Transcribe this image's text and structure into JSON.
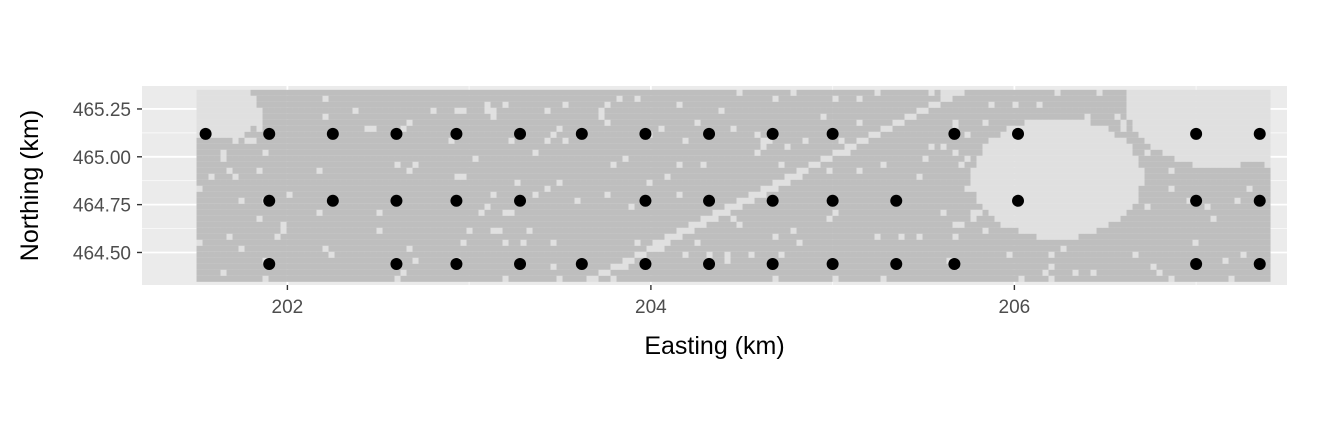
{
  "chart_data": {
    "type": "scatter",
    "xlabel": "Easting (km)",
    "ylabel": "Northing (km)",
    "xlim": [
      201.2,
      207.5
    ],
    "ylim": [
      464.33,
      465.37
    ],
    "x_ticks": [
      202,
      204,
      206
    ],
    "x_tick_labels": [
      "202",
      "204",
      "206"
    ],
    "y_ticks": [
      464.5,
      464.75,
      465.0,
      465.25
    ],
    "y_tick_labels": [
      "464.50",
      "464.75",
      "465.00",
      "465.25"
    ],
    "grid": true,
    "colors": {
      "panel_background": "#ebebeb",
      "grid_major": "#ffffff",
      "raster_fill": "#bebebe",
      "raster_gap": "#e0e0e0",
      "points": "#000000"
    },
    "raster_extent": {
      "xmin": 201.5,
      "xmax": 207.4,
      "ymin": 464.36,
      "ymax": 465.35
    },
    "series": [
      {
        "points": [
          {
            "x": 201.55,
            "y": 465.12
          },
          {
            "x": 201.9,
            "y": 465.12
          },
          {
            "x": 202.25,
            "y": 465.12
          },
          {
            "x": 202.6,
            "y": 465.12
          },
          {
            "x": 202.93,
            "y": 465.12
          },
          {
            "x": 203.28,
            "y": 465.12
          },
          {
            "x": 203.62,
            "y": 465.12
          },
          {
            "x": 203.97,
            "y": 465.12
          },
          {
            "x": 204.32,
            "y": 465.12
          },
          {
            "x": 204.67,
            "y": 465.12
          },
          {
            "x": 205.0,
            "y": 465.12
          },
          {
            "x": 205.67,
            "y": 465.12
          },
          {
            "x": 206.02,
            "y": 465.12
          },
          {
            "x": 207.0,
            "y": 465.12
          },
          {
            "x": 207.35,
            "y": 465.12
          },
          {
            "x": 201.9,
            "y": 464.77
          },
          {
            "x": 202.25,
            "y": 464.77
          },
          {
            "x": 202.6,
            "y": 464.77
          },
          {
            "x": 202.93,
            "y": 464.77
          },
          {
            "x": 203.28,
            "y": 464.77
          },
          {
            "x": 203.97,
            "y": 464.77
          },
          {
            "x": 204.32,
            "y": 464.77
          },
          {
            "x": 204.67,
            "y": 464.77
          },
          {
            "x": 205.0,
            "y": 464.77
          },
          {
            "x": 205.35,
            "y": 464.77
          },
          {
            "x": 206.02,
            "y": 464.77
          },
          {
            "x": 207.0,
            "y": 464.77
          },
          {
            "x": 207.35,
            "y": 464.77
          },
          {
            "x": 201.9,
            "y": 464.44
          },
          {
            "x": 202.6,
            "y": 464.44
          },
          {
            "x": 202.93,
            "y": 464.44
          },
          {
            "x": 203.28,
            "y": 464.44
          },
          {
            "x": 203.62,
            "y": 464.44
          },
          {
            "x": 203.97,
            "y": 464.44
          },
          {
            "x": 204.32,
            "y": 464.44
          },
          {
            "x": 204.67,
            "y": 464.44
          },
          {
            "x": 205.0,
            "y": 464.44
          },
          {
            "x": 205.35,
            "y": 464.44
          },
          {
            "x": 205.67,
            "y": 464.44
          },
          {
            "x": 207.0,
            "y": 464.44
          },
          {
            "x": 207.35,
            "y": 464.44
          }
        ]
      }
    ]
  }
}
